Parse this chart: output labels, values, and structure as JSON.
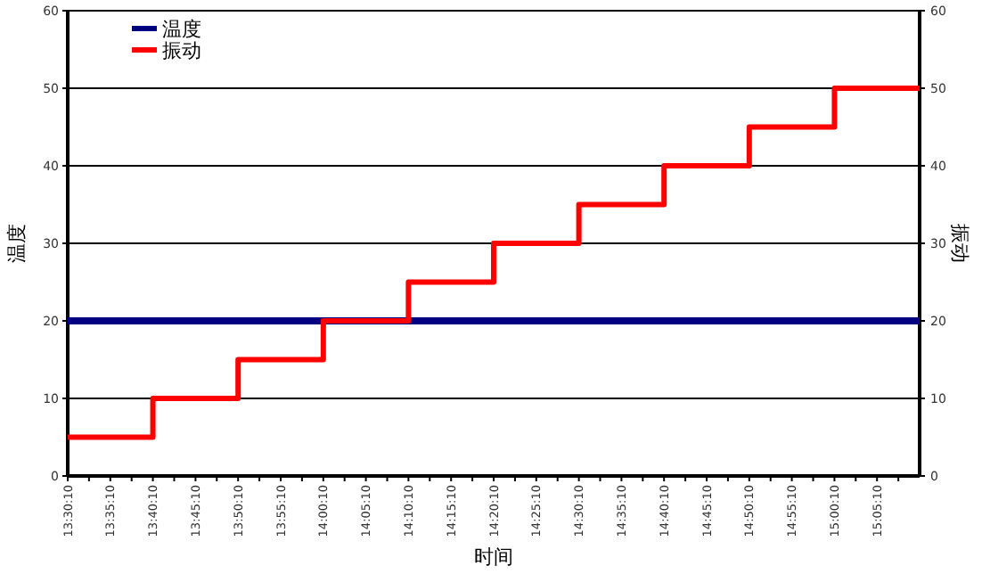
{
  "chart_data": {
    "type": "line",
    "xlabel": "时间",
    "ylabel": "温度",
    "y2label": "振动",
    "xlim": [
      13.5028,
      15.1694
    ],
    "ylim": [
      0,
      60
    ],
    "yticks": [
      0,
      10,
      20,
      30,
      40,
      50,
      60
    ],
    "y2lim": [
      0,
      60
    ],
    "y2ticks": [
      0,
      10,
      20,
      30,
      40,
      50,
      60
    ],
    "xticks": [
      {
        "value": 13.5028,
        "label": "13:30:10"
      },
      {
        "value": 13.5444,
        "label": null
      },
      {
        "value": 13.5861,
        "label": "13:35:10"
      },
      {
        "value": 13.6278,
        "label": null
      },
      {
        "value": 13.6694,
        "label": "13:40:10"
      },
      {
        "value": 13.7111,
        "label": null
      },
      {
        "value": 13.7528,
        "label": "13:45:10"
      },
      {
        "value": 13.7944,
        "label": null
      },
      {
        "value": 13.8361,
        "label": "13:50:10"
      },
      {
        "value": 13.8778,
        "label": null
      },
      {
        "value": 13.9194,
        "label": "13:55:10"
      },
      {
        "value": 13.9611,
        "label": null
      },
      {
        "value": 14.0028,
        "label": "14:00:10"
      },
      {
        "value": 14.0444,
        "label": null
      },
      {
        "value": 14.0861,
        "label": "14:05:10"
      },
      {
        "value": 14.1278,
        "label": null
      },
      {
        "value": 14.1694,
        "label": "14:10:10"
      },
      {
        "value": 14.2111,
        "label": null
      },
      {
        "value": 14.2528,
        "label": "14:15:10"
      },
      {
        "value": 14.2944,
        "label": null
      },
      {
        "value": 14.3361,
        "label": "14:20:10"
      },
      {
        "value": 14.3778,
        "label": null
      },
      {
        "value": 14.4194,
        "label": "14:25:10"
      },
      {
        "value": 14.4611,
        "label": null
      },
      {
        "value": 14.5028,
        "label": "14:30:10"
      },
      {
        "value": 14.5444,
        "label": null
      },
      {
        "value": 14.5861,
        "label": "14:35:10"
      },
      {
        "value": 14.6278,
        "label": null
      },
      {
        "value": 14.6694,
        "label": "14:40:10"
      },
      {
        "value": 14.7111,
        "label": null
      },
      {
        "value": 14.7528,
        "label": "14:45:10"
      },
      {
        "value": 14.7944,
        "label": null
      },
      {
        "value": 14.8361,
        "label": "14:50:10"
      },
      {
        "value": 14.8778,
        "label": null
      },
      {
        "value": 14.9194,
        "label": "14:55:10"
      },
      {
        "value": 14.9611,
        "label": null
      },
      {
        "value": 15.0028,
        "label": "15:00:10"
      },
      {
        "value": 15.0444,
        "label": null
      },
      {
        "value": 15.0861,
        "label": "15:05:10"
      },
      {
        "value": 15.1278,
        "label": null
      }
    ],
    "grid": "y",
    "legend": "top left",
    "series": [
      {
        "name": "温度",
        "color": "#000080",
        "type": "line",
        "x": [
          13.5028,
          15.1694
        ],
        "values": [
          20,
          20
        ]
      },
      {
        "name": "振动",
        "color": "#ff0000",
        "type": "step",
        "axis": "y2",
        "x": [
          13.5028,
          13.6694,
          13.8361,
          14.0028,
          14.1694,
          14.3361,
          14.5028,
          14.6694,
          14.8361,
          15.0028,
          15.1694
        ],
        "values": [
          5,
          10,
          15,
          20,
          25,
          30,
          35,
          40,
          45,
          50,
          50
        ]
      }
    ]
  }
}
